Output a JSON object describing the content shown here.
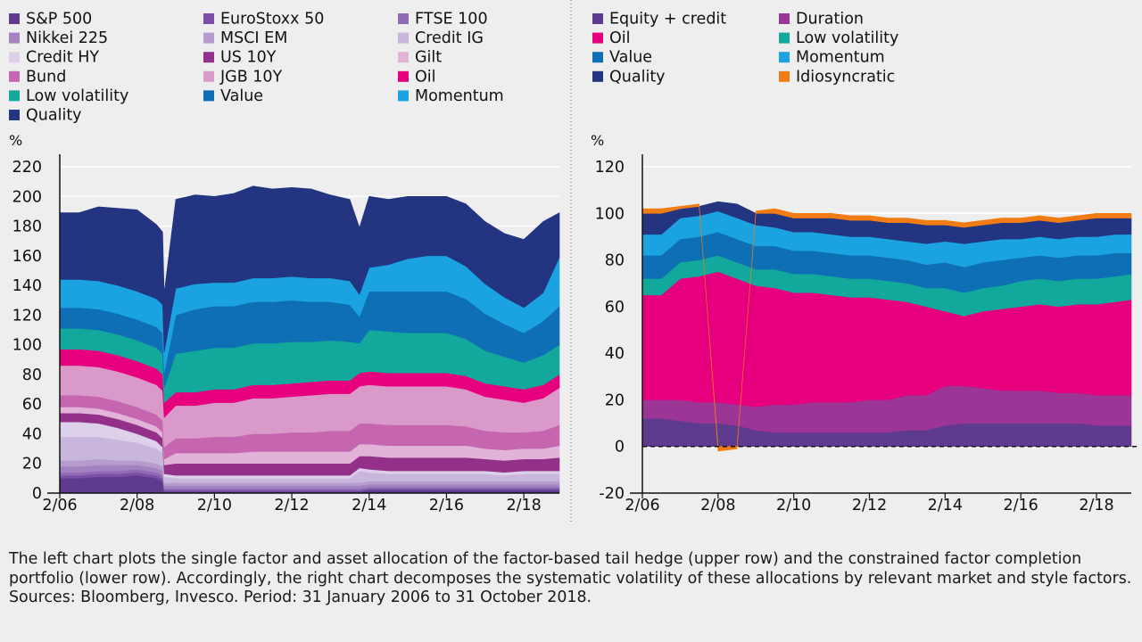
{
  "chart_data": [
    {
      "id": "left",
      "type": "area",
      "stacked": true,
      "title": "",
      "xlabel": "",
      "ylabel": "%",
      "ylim": [
        0,
        220
      ],
      "yticks": [
        0,
        20,
        40,
        60,
        80,
        100,
        120,
        140,
        160,
        180,
        200,
        220
      ],
      "xlim": [
        2006.0,
        2018.92
      ],
      "xticks": [
        {
          "x": 2006,
          "label": "2/06"
        },
        {
          "x": 2008,
          "label": "2/08"
        },
        {
          "x": 2010,
          "label": "2/10"
        },
        {
          "x": 2012,
          "label": "2/12"
        },
        {
          "x": 2014,
          "label": "2/14"
        },
        {
          "x": 2016,
          "label": "2/16"
        },
        {
          "x": 2018,
          "label": "2/18"
        }
      ],
      "grid": true,
      "legend_position": "top",
      "x": [
        2006.0,
        2006.5,
        2007.0,
        2007.5,
        2008.0,
        2008.5,
        2008.66,
        2008.7,
        2009.0,
        2009.5,
        2010.0,
        2010.5,
        2011.0,
        2011.5,
        2012.0,
        2012.5,
        2013.0,
        2013.5,
        2013.75,
        2014.0,
        2014.5,
        2015.0,
        2015.5,
        2016.0,
        2016.5,
        2017.0,
        2017.5,
        2018.0,
        2018.5,
        2018.92
      ],
      "series": [
        {
          "name": "S&P 500",
          "color": "#5e3b8e",
          "values": [
            10,
            10,
            11,
            11,
            12,
            10,
            8,
            1,
            1,
            1,
            1,
            1,
            1,
            1,
            1,
            1,
            1,
            1,
            1,
            2,
            2,
            2,
            2,
            2,
            2,
            2,
            2,
            2,
            2,
            2
          ]
        },
        {
          "name": "EuroStoxx 50",
          "color": "#7a4fa6",
          "values": [
            2,
            2,
            2,
            2,
            2,
            2,
            2,
            1,
            1,
            1,
            1,
            1,
            1,
            1,
            1,
            1,
            1,
            1,
            1,
            1,
            1,
            1,
            1,
            1,
            1,
            1,
            1,
            1,
            1,
            1
          ]
        },
        {
          "name": "FTSE 100",
          "color": "#8e6bb4",
          "values": [
            2,
            2,
            2,
            2,
            2,
            2,
            2,
            1,
            1,
            1,
            1,
            1,
            1,
            1,
            1,
            1,
            1,
            1,
            1,
            1,
            1,
            1,
            1,
            1,
            1,
            1,
            1,
            1,
            1,
            1
          ]
        },
        {
          "name": "Nikkei 225",
          "color": "#a383bf",
          "values": [
            4,
            4,
            4,
            4,
            3,
            3,
            3,
            2,
            2,
            2,
            2,
            2,
            2,
            2,
            2,
            2,
            2,
            2,
            2,
            2,
            2,
            2,
            2,
            2,
            2,
            2,
            2,
            2,
            2,
            2
          ]
        },
        {
          "name": "MSCI EM",
          "color": "#b69bcd",
          "values": [
            4,
            4,
            4,
            3,
            3,
            3,
            3,
            2,
            2,
            2,
            2,
            2,
            2,
            2,
            2,
            2,
            2,
            2,
            2,
            2,
            2,
            2,
            2,
            2,
            2,
            2,
            2,
            2,
            2,
            2
          ]
        },
        {
          "name": "Credit IG",
          "color": "#c8b6dc",
          "values": [
            16,
            16,
            15,
            14,
            12,
            10,
            9,
            4,
            3,
            3,
            3,
            3,
            3,
            3,
            3,
            3,
            3,
            3,
            8,
            6,
            5,
            5,
            5,
            5,
            5,
            5,
            4,
            5,
            5,
            5
          ]
        },
        {
          "name": "Credit HY",
          "color": "#ddd0ea",
          "values": [
            10,
            10,
            9,
            8,
            6,
            5,
            4,
            2,
            2,
            2,
            2,
            2,
            2,
            2,
            2,
            2,
            2,
            2,
            2,
            2,
            2,
            2,
            2,
            2,
            2,
            2,
            2,
            2,
            2,
            2
          ]
        },
        {
          "name": "US 10Y",
          "color": "#93318a",
          "values": [
            6,
            6,
            6,
            6,
            6,
            6,
            6,
            6,
            8,
            8,
            8,
            8,
            8,
            8,
            8,
            8,
            8,
            8,
            8,
            9,
            9,
            9,
            9,
            9,
            9,
            8,
            8,
            8,
            8,
            9
          ]
        },
        {
          "name": "Gilt",
          "color": "#e2b3d9",
          "values": [
            4,
            4,
            4,
            4,
            4,
            4,
            4,
            4,
            7,
            7,
            7,
            7,
            8,
            8,
            8,
            8,
            8,
            8,
            8,
            8,
            8,
            8,
            8,
            8,
            8,
            7,
            7,
            7,
            7,
            8
          ]
        },
        {
          "name": "Bund",
          "color": "#c666b0",
          "values": [
            8,
            8,
            8,
            8,
            8,
            8,
            8,
            8,
            10,
            10,
            11,
            11,
            12,
            12,
            13,
            13,
            14,
            14,
            14,
            14,
            14,
            14,
            14,
            14,
            13,
            12,
            12,
            11,
            12,
            14
          ]
        },
        {
          "name": "JGB 10Y",
          "color": "#d99ac9",
          "values": [
            20,
            20,
            20,
            20,
            20,
            20,
            20,
            20,
            22,
            22,
            23,
            23,
            24,
            24,
            24,
            25,
            25,
            25,
            25,
            26,
            26,
            26,
            26,
            26,
            25,
            23,
            22,
            20,
            22,
            25
          ]
        },
        {
          "name": "Oil",
          "color": "#e6007e",
          "values": [
            11,
            11,
            11,
            11,
            11,
            11,
            11,
            10,
            9,
            9,
            9,
            9,
            9,
            9,
            9,
            9,
            9,
            9,
            9,
            9,
            9,
            9,
            9,
            9,
            9,
            9,
            9,
            9,
            9,
            9
          ]
        },
        {
          "name": "Low volatility",
          "color": "#12a89c",
          "values": [
            14,
            14,
            14,
            14,
            14,
            14,
            14,
            10,
            26,
            28,
            28,
            28,
            28,
            28,
            28,
            27,
            27,
            26,
            20,
            28,
            28,
            27,
            27,
            27,
            25,
            22,
            20,
            18,
            20,
            20
          ]
        },
        {
          "name": "Value",
          "color": "#0f6fb4",
          "values": [
            14,
            14,
            14,
            14,
            14,
            14,
            14,
            10,
            26,
            28,
            28,
            28,
            28,
            28,
            28,
            27,
            26,
            25,
            18,
            26,
            27,
            28,
            28,
            28,
            27,
            25,
            22,
            20,
            23,
            26
          ]
        },
        {
          "name": "Momentum",
          "color": "#1aa3e0",
          "values": [
            19,
            19,
            19,
            19,
            19,
            19,
            19,
            14,
            18,
            17,
            16,
            16,
            16,
            16,
            16,
            16,
            16,
            16,
            15,
            16,
            18,
            22,
            24,
            24,
            22,
            20,
            18,
            17,
            19,
            33
          ]
        },
        {
          "name": "Quality",
          "color": "#233480",
          "values": [
            45,
            45,
            50,
            52,
            55,
            50,
            49,
            40,
            60,
            60,
            58,
            60,
            62,
            60,
            60,
            60,
            56,
            55,
            45,
            48,
            44,
            42,
            40,
            40,
            42,
            42,
            43,
            46,
            48,
            30
          ]
        }
      ]
    },
    {
      "id": "right",
      "type": "area",
      "stacked": true,
      "title": "",
      "xlabel": "",
      "ylabel": "%",
      "ylim": [
        -20,
        120
      ],
      "yticks": [
        -20,
        0,
        20,
        40,
        60,
        80,
        100,
        120
      ],
      "xlim": [
        2006.0,
        2018.92
      ],
      "xticks": [
        {
          "x": 2006,
          "label": "2/06"
        },
        {
          "x": 2008,
          "label": "2/08"
        },
        {
          "x": 2010,
          "label": "2/10"
        },
        {
          "x": 2012,
          "label": "2/12"
        },
        {
          "x": 2014,
          "label": "2/14"
        },
        {
          "x": 2016,
          "label": "2/16"
        },
        {
          "x": 2018,
          "label": "2/18"
        }
      ],
      "grid": true,
      "zero_line": "dashed",
      "legend_position": "top",
      "x": [
        2006.0,
        2006.5,
        2007.0,
        2007.5,
        2008.0,
        2008.5,
        2009.0,
        2009.5,
        2010.0,
        2010.5,
        2011.0,
        2011.5,
        2012.0,
        2012.5,
        2013.0,
        2013.5,
        2014.0,
        2014.5,
        2015.0,
        2015.5,
        2016.0,
        2016.5,
        2017.0,
        2017.5,
        2018.0,
        2018.5,
        2018.92
      ],
      "series": [
        {
          "name": "Equity + credit",
          "color": "#5e3b8e",
          "values": [
            12,
            12,
            11,
            10,
            10,
            9,
            7,
            6,
            6,
            6,
            6,
            6,
            6,
            6,
            7,
            7,
            9,
            10,
            10,
            10,
            10,
            10,
            10,
            10,
            9,
            9,
            9
          ]
        },
        {
          "name": "Duration",
          "color": "#9b3596",
          "values": [
            8,
            8,
            9,
            9,
            9,
            9,
            10,
            12,
            12,
            13,
            13,
            13,
            14,
            14,
            15,
            15,
            17,
            16,
            15,
            14,
            14,
            14,
            13,
            13,
            13,
            13,
            13
          ]
        },
        {
          "name": "Oil",
          "color": "#e6007e",
          "values": [
            45,
            45,
            52,
            54,
            56,
            54,
            52,
            50,
            48,
            47,
            46,
            45,
            44,
            43,
            40,
            38,
            32,
            30,
            33,
            35,
            36,
            37,
            37,
            38,
            39,
            40,
            41
          ]
        },
        {
          "name": "Low volatility",
          "color": "#12a89c",
          "values": [
            7,
            7,
            7,
            7,
            7,
            7,
            7,
            8,
            8,
            8,
            8,
            8,
            8,
            8,
            8,
            8,
            10,
            10,
            10,
            10,
            11,
            11,
            11,
            11,
            11,
            11,
            11
          ]
        },
        {
          "name": "Value",
          "color": "#0f6fb4",
          "values": [
            10,
            10,
            10,
            10,
            10,
            10,
            10,
            10,
            10,
            10,
            10,
            10,
            10,
            10,
            10,
            10,
            11,
            11,
            11,
            11,
            10,
            10,
            10,
            10,
            10,
            10,
            9
          ]
        },
        {
          "name": "Momentum",
          "color": "#1aa3e0",
          "values": [
            9,
            9,
            9,
            9,
            9,
            9,
            9,
            8,
            8,
            8,
            8,
            8,
            8,
            8,
            8,
            9,
            9,
            10,
            9,
            9,
            8,
            8,
            8,
            8,
            8,
            8,
            8
          ]
        },
        {
          "name": "Quality",
          "color": "#233480",
          "values": [
            9,
            9,
            4,
            4,
            4,
            6,
            5,
            6,
            6,
            6,
            7,
            7,
            7,
            7,
            8,
            8,
            7,
            7,
            7,
            7,
            7,
            7,
            7,
            7,
            8,
            7,
            7
          ]
        },
        {
          "name": "Idiosyncratic",
          "color": "#f07c13",
          "values": [
            2,
            2,
            1,
            1,
            -2,
            -1,
            1,
            2,
            2,
            2,
            2,
            2,
            2,
            2,
            2,
            2,
            2,
            2,
            2,
            2,
            2,
            2,
            2,
            2,
            2,
            2,
            2
          ]
        }
      ]
    }
  ],
  "caption": {
    "text": "The left chart plots the single factor and asset allocation of the factor-based tail hedge (upper row) and the constrained factor completion portfolio (lower row). Accordingly, the right chart decomposes the systematic volatility of these allocations by relevant market and style factors.",
    "sources": "Sources: Bloomberg, Invesco. Period: 31 January 2006 to 31 October 2018."
  }
}
